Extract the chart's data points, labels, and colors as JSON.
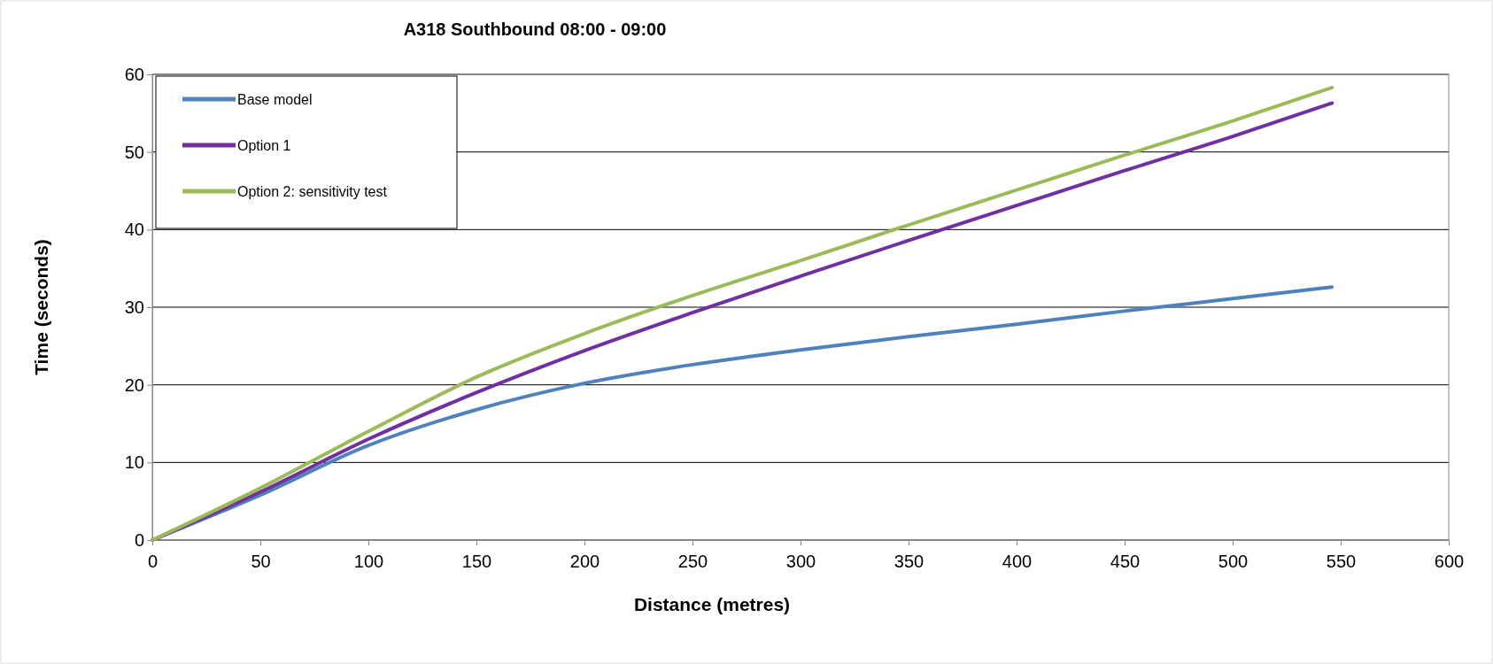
{
  "chart_data": {
    "type": "line",
    "title": "A318 Southbound 08:00 - 09:00",
    "xlabel": "Distance (metres)",
    "ylabel": "Time (seconds)",
    "x": [
      0,
      50,
      100,
      150,
      200,
      250,
      300,
      350,
      400,
      450,
      500,
      546
    ],
    "series": [
      {
        "name": "Base model",
        "color": "#4f81bd",
        "values": [
          0,
          5.8,
          12.2,
          16.8,
          20.2,
          22.6,
          24.5,
          26.2,
          27.8,
          29.5,
          31.1,
          32.6
        ]
      },
      {
        "name": "Option 1",
        "color": "#7030a0",
        "values": [
          0,
          6.2,
          13,
          19,
          24.4,
          29.3,
          34,
          38.6,
          43.1,
          47.6,
          52,
          56.3
        ]
      },
      {
        "name": "Option 2: sensitivity test",
        "color": "#9bbb59",
        "values": [
          0,
          6.7,
          14,
          21,
          26.6,
          31.5,
          36,
          40.6,
          45.1,
          49.6,
          54,
          58.3
        ]
      }
    ],
    "xlim": [
      0,
      600
    ],
    "xticks": [
      0,
      50,
      100,
      150,
      200,
      250,
      300,
      350,
      400,
      450,
      500,
      550,
      600
    ],
    "ylim": [
      0,
      60
    ],
    "yticks": [
      0,
      10,
      20,
      30,
      40,
      50,
      60
    ],
    "grid": "y",
    "legend": "top left",
    "marker": "none",
    "line_style": "solid"
  }
}
